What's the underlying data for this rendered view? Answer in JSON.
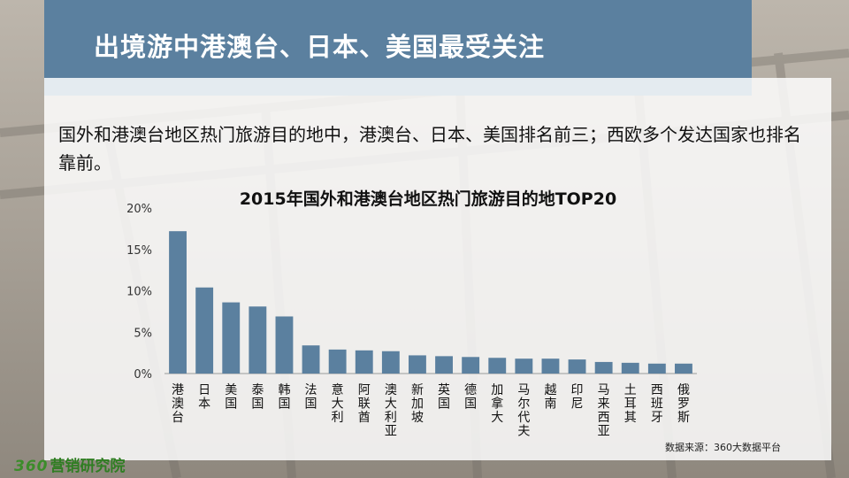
{
  "page": {
    "title": "出境游中港澳台、日本、美国最受关注",
    "intro": "国外和港澳台地区热门旅游目的地中，港澳台、日本、美国排名前三；西欧多个发达国家也排名靠前。",
    "source": "数据来源：360大数据平台",
    "brand_number": "360",
    "brand_text": "营销研究院",
    "colors": {
      "title_bar": "#5b809f",
      "bar": "#5b809f",
      "brand": "#3b8c2a"
    }
  },
  "chart_data": {
    "type": "bar",
    "title": "2015年国外和港澳台地区热门旅游目的地TOP20",
    "xlabel": "",
    "ylabel": "",
    "ylim": [
      0,
      20
    ],
    "yticks": [
      "0%",
      "5%",
      "10%",
      "15%",
      "20%"
    ],
    "ytick_values": [
      0,
      5,
      10,
      15,
      20
    ],
    "grid": false,
    "categories": [
      "港澳台",
      "日本",
      "美国",
      "泰国",
      "韩国",
      "法国",
      "意大利",
      "阿联酋",
      "澳大利亚",
      "新加坡",
      "英国",
      "德国",
      "加拿大",
      "马尔代夫",
      "越南",
      "印尼",
      "马来西亚",
      "土耳其",
      "西班牙",
      "俄罗斯"
    ],
    "values": [
      17.2,
      10.4,
      8.6,
      8.1,
      6.9,
      3.4,
      2.9,
      2.8,
      2.7,
      2.2,
      2.1,
      2.0,
      1.9,
      1.8,
      1.8,
      1.7,
      1.4,
      1.3,
      1.2,
      1.2
    ]
  }
}
